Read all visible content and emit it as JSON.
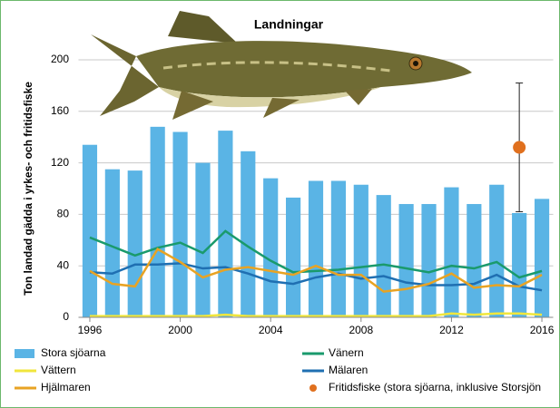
{
  "chart_data": {
    "type": "combo",
    "title": "Landningar",
    "y_label": "Ton landad gädda i yrkes- och fritidsfiske",
    "x": [
      1996,
      1997,
      1998,
      1999,
      2000,
      2001,
      2002,
      2003,
      2004,
      2005,
      2006,
      2007,
      2008,
      2009,
      2010,
      2011,
      2012,
      2013,
      2014,
      2015,
      2016
    ],
    "xlim": [
      1995.5,
      2016.5
    ],
    "xticks": [
      1996,
      2000,
      2004,
      2008,
      2012,
      2016
    ],
    "ylim": [
      0,
      200
    ],
    "yticks": [
      0,
      40,
      80,
      120,
      160,
      200
    ],
    "grid": true,
    "series": [
      {
        "name": "Stora sjöarna",
        "kind": "bar",
        "color": "#5ab4e5",
        "values": [
          134,
          115,
          114,
          148,
          144,
          120,
          145,
          129,
          108,
          93,
          106,
          106,
          103,
          95,
          88,
          88,
          101,
          88,
          103,
          81,
          92
        ]
      },
      {
        "name": "Vänern",
        "kind": "line",
        "color": "#1a9a6c",
        "values": [
          62,
          55,
          48,
          54,
          58,
          50,
          67,
          55,
          44,
          35,
          36,
          37,
          39,
          41,
          38,
          35,
          40,
          38,
          43,
          31,
          36
        ]
      },
      {
        "name": "Vättern",
        "kind": "line",
        "color": "#f0e63c",
        "values": [
          1,
          1,
          1,
          1,
          1,
          1,
          2,
          1,
          1,
          1,
          1,
          1,
          1,
          1,
          1,
          1,
          3,
          2,
          3,
          3,
          2
        ]
      },
      {
        "name": "Mälaren",
        "kind": "line",
        "color": "#1f6fb2",
        "values": [
          35,
          34,
          41,
          41,
          42,
          38,
          39,
          34,
          28,
          26,
          31,
          34,
          30,
          32,
          27,
          25,
          25,
          26,
          33,
          24,
          21
        ]
      },
      {
        "name": "Hjälmaren",
        "kind": "line",
        "color": "#e8a323",
        "values": [
          36,
          26,
          24,
          53,
          43,
          31,
          37,
          39,
          36,
          33,
          40,
          33,
          33,
          20,
          22,
          26,
          34,
          23,
          25,
          24,
          33
        ]
      },
      {
        "name": "Fritidsfiske (stora sjöarna, inklusive Storsjön",
        "kind": "point",
        "color": "#e0701e",
        "values": [
          null,
          null,
          null,
          null,
          null,
          null,
          null,
          null,
          null,
          null,
          null,
          null,
          null,
          null,
          null,
          null,
          null,
          null,
          null,
          132,
          null
        ],
        "errors": [
          null,
          null,
          null,
          null,
          null,
          null,
          null,
          null,
          null,
          null,
          null,
          null,
          null,
          null,
          null,
          null,
          null,
          null,
          null,
          50,
          null
        ]
      }
    ]
  }
}
